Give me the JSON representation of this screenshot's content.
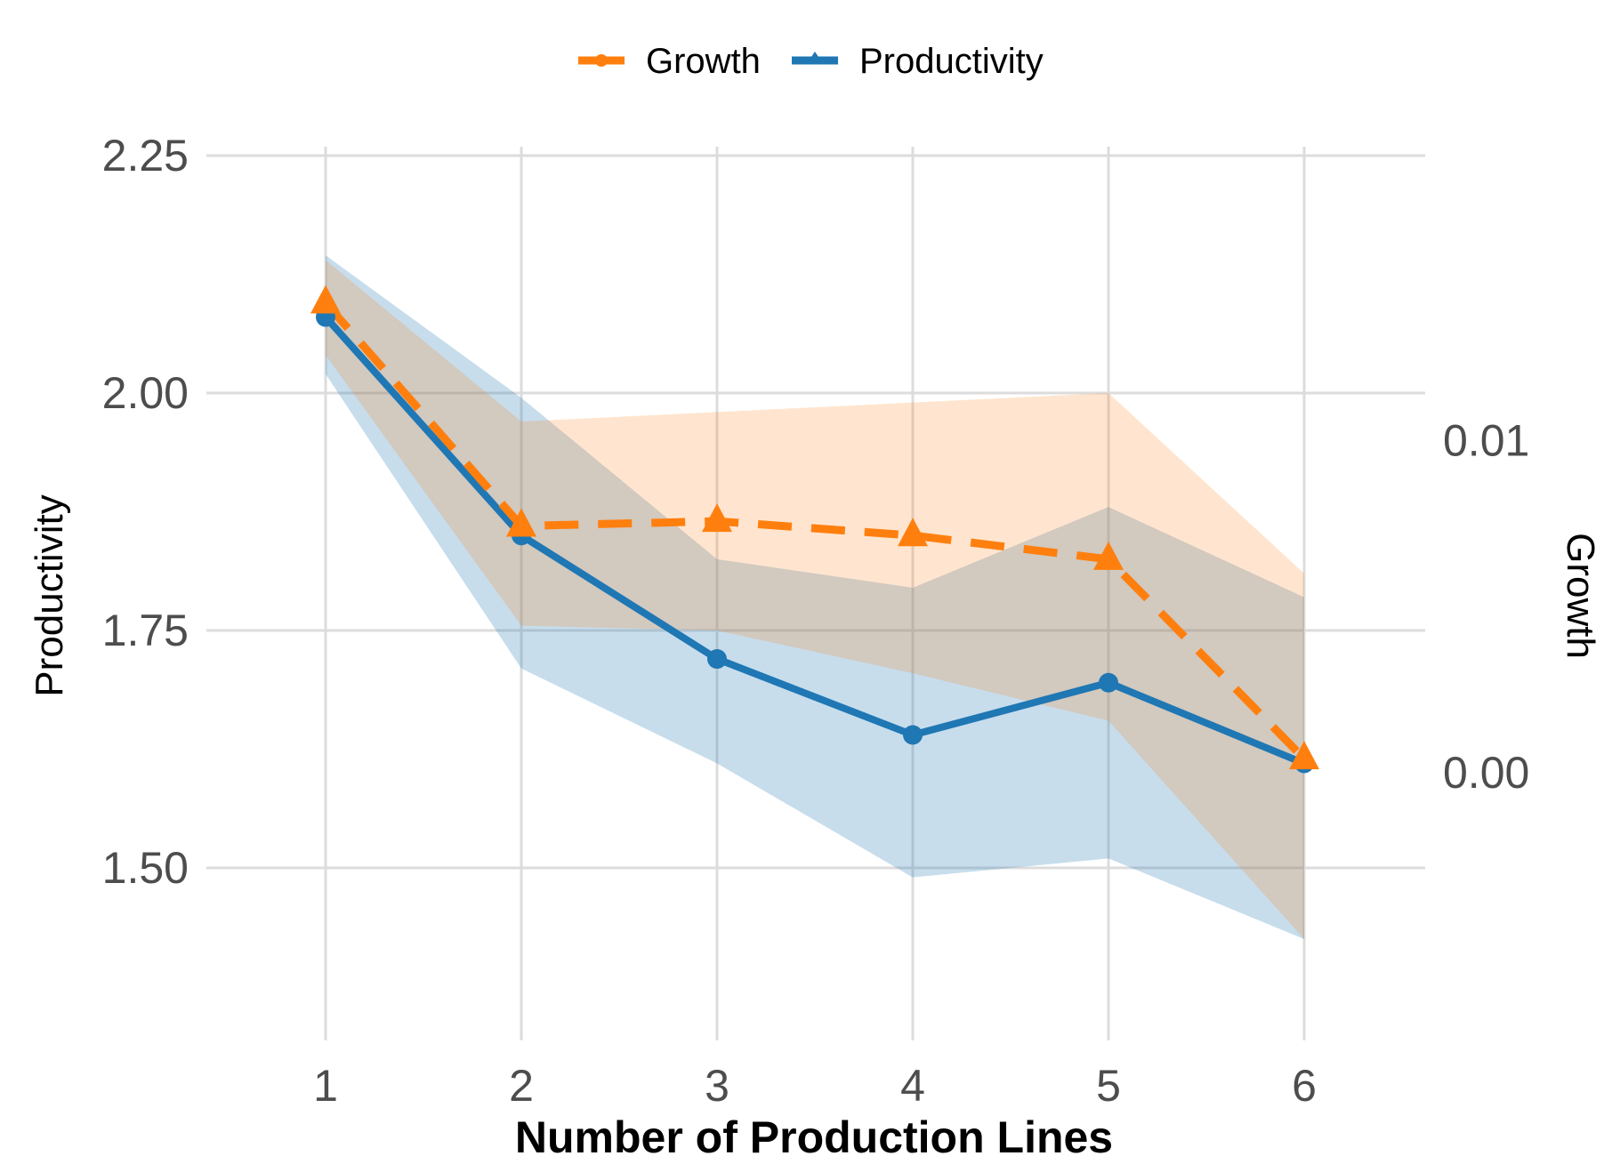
{
  "chart_data": {
    "type": "line",
    "xlabel": "Number of Production Lines",
    "ylabel": "Productivity",
    "y2label": "Growth",
    "x": [
      1,
      2,
      3,
      4,
      5,
      6
    ],
    "ylim": [
      1.35,
      2.28
    ],
    "y_ticks": [
      "1.50",
      "1.75",
      "2.00",
      "2.25"
    ],
    "y2_axis": {
      "ticks": [
        "0.00",
        "0.01"
      ],
      "tick_productivity_equivalent": [
        1.6,
        1.95
      ]
    },
    "legend_position": "top",
    "legend": [
      {
        "label": "Growth",
        "color": "#ff7f0e"
      },
      {
        "label": "Productivity",
        "color": "#1f77b4"
      }
    ],
    "series": [
      {
        "name": "Productivity",
        "axis": "left",
        "color": "#1f77b4",
        "marker": "circle",
        "line_style": "solid",
        "values": [
          2.08,
          1.85,
          1.72,
          1.64,
          1.695,
          1.61
        ],
        "band_upper": [
          2.145,
          1.995,
          1.825,
          1.795,
          1.88,
          1.785
        ],
        "band_lower": [
          2.02,
          1.71,
          1.61,
          1.49,
          1.51,
          1.425
        ]
      },
      {
        "name": "Growth",
        "axis": "right",
        "color": "#ff7f0e",
        "marker": "triangle",
        "line_style": "dashed",
        "values_on_left_scale": [
          2.095,
          1.86,
          1.865,
          1.85,
          1.825,
          1.615
        ],
        "band_upper_on_left_scale": [
          2.14,
          1.97,
          1.98,
          1.99,
          2.0,
          1.81
        ],
        "band_lower_on_left_scale": [
          2.04,
          1.755,
          1.75,
          1.705,
          1.655,
          1.425
        ]
      }
    ]
  }
}
